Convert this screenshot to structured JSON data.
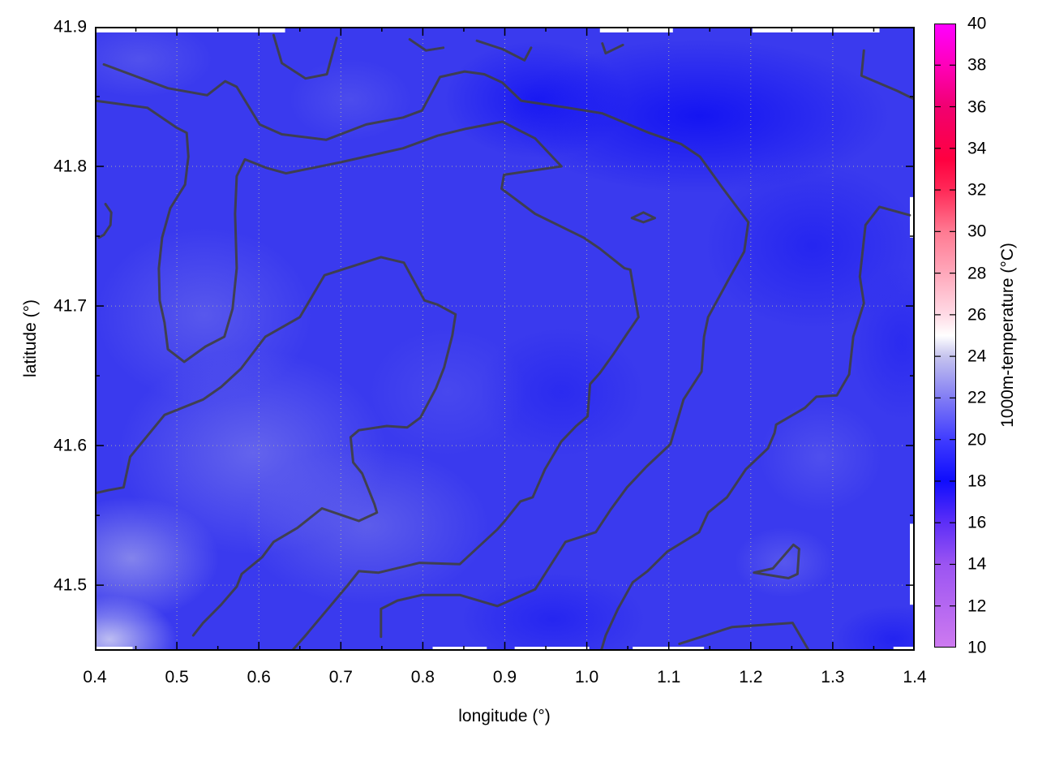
{
  "figure": {
    "kind": "gnuplot pm3d map with contour lines",
    "background": "#ffffff"
  },
  "axes": {
    "x": {
      "label": "longitude (°)",
      "range": [
        0.4,
        1.4
      ],
      "tick_labels": [
        "0.4",
        "0.5",
        "0.6",
        "0.7",
        "0.8",
        "0.9",
        "1.0",
        "1.1",
        "1.2",
        "1.3",
        "1.4"
      ],
      "tick_values": [
        0.4,
        0.5,
        0.6,
        0.7,
        0.8,
        0.9,
        1.0,
        1.1,
        1.2,
        1.3,
        1.4
      ],
      "minor_tick_values": [
        0.45,
        0.55,
        0.65,
        0.75,
        0.85,
        0.95,
        1.05,
        1.15,
        1.25,
        1.35
      ]
    },
    "y": {
      "label": "latitude (°)",
      "range": [
        41.453,
        41.9
      ],
      "tick_labels": [
        "41.5",
        "41.6",
        "41.7",
        "41.8",
        "41.9"
      ],
      "tick_values": [
        41.5,
        41.6,
        41.7,
        41.8,
        41.9
      ],
      "minor_tick_values": [
        41.55,
        41.65,
        41.75,
        41.85
      ]
    }
  },
  "colorbar": {
    "label": "1000m-temperature (°C)",
    "range": [
      10,
      40
    ],
    "tick_values": [
      10,
      12,
      14,
      16,
      18,
      20,
      22,
      24,
      26,
      28,
      30,
      32,
      34,
      36,
      38,
      40
    ],
    "palette": [
      {
        "v": 10,
        "c": "#cd7af0"
      },
      {
        "v": 14,
        "c": "#9b54f2"
      },
      {
        "v": 16,
        "c": "#5c2ef7"
      },
      {
        "v": 18,
        "c": "#0f0dfd"
      },
      {
        "v": 20,
        "c": "#403cff"
      },
      {
        "v": 22,
        "c": "#827df4"
      },
      {
        "v": 24,
        "c": "#c6c4ee"
      },
      {
        "v": 25,
        "c": "#ffffff"
      },
      {
        "v": 26,
        "c": "#ffdbe6"
      },
      {
        "v": 28,
        "c": "#ffa8bb"
      },
      {
        "v": 30,
        "c": "#ff7a92"
      },
      {
        "v": 32,
        "c": "#ff2a58"
      },
      {
        "v": 33.5,
        "c": "#ff0040"
      },
      {
        "v": 36,
        "c": "#f10070"
      },
      {
        "v": 38,
        "c": "#ff00b8"
      },
      {
        "v": 40,
        "c": "#ff00ff"
      }
    ]
  },
  "chart_data": {
    "type": "heatmap",
    "x_range": [
      0.4,
      1.4
    ],
    "y_range": [
      41.453,
      41.9
    ],
    "value_range": [
      10,
      40
    ],
    "grid": true,
    "field_summary": "Temperature field at 1000 m over a lon/lat box; whole domain is blue (~17-21 °C): warmer lighter blue-lavender in the south-west corner and centre-left, deepest blue (~17-18 °C) along the northern band, centre-east and south-east; thin white slivers (no data) along parts of the top, right and bottom edges.",
    "contour_color": "#3f3f3f",
    "contour_lines": [
      {
        "points": [
          [
            0.411,
            41.873
          ],
          [
            0.489,
            41.856
          ],
          [
            0.537,
            41.851
          ],
          [
            0.559,
            41.861
          ],
          [
            0.573,
            41.857
          ],
          [
            0.601,
            41.83
          ],
          [
            0.628,
            41.823
          ],
          [
            0.682,
            41.819
          ],
          [
            0.731,
            41.83
          ],
          [
            0.776,
            41.835
          ],
          [
            0.799,
            41.84
          ],
          [
            0.821,
            41.864
          ],
          [
            0.851,
            41.868
          ],
          [
            0.875,
            41.866
          ],
          [
            0.897,
            41.86
          ],
          [
            0.92,
            41.847
          ],
          [
            0.977,
            41.842
          ],
          [
            1.019,
            41.838
          ],
          [
            1.076,
            41.824
          ],
          [
            1.115,
            41.816
          ],
          [
            1.138,
            41.807
          ],
          [
            1.165,
            41.785
          ],
          [
            1.197,
            41.76
          ],
          [
            1.192,
            41.739
          ],
          [
            1.173,
            41.719
          ],
          [
            1.148,
            41.692
          ],
          [
            1.143,
            41.678
          ],
          [
            1.14,
            41.653
          ],
          [
            1.118,
            41.633
          ],
          [
            1.102,
            41.601
          ],
          [
            1.073,
            41.585
          ],
          [
            1.049,
            41.57
          ],
          [
            1.029,
            41.554
          ],
          [
            1.011,
            41.538
          ],
          [
            0.974,
            41.531
          ],
          [
            0.937,
            41.497
          ],
          [
            0.891,
            41.485
          ],
          [
            0.845,
            41.493
          ],
          [
            0.799,
            41.493
          ],
          [
            0.769,
            41.489
          ],
          [
            0.749,
            41.483
          ],
          [
            0.749,
            41.463
          ]
        ]
      },
      {
        "points": [
          [
            0.401,
            41.847
          ],
          [
            0.464,
            41.842
          ],
          [
            0.499,
            41.828
          ],
          [
            0.512,
            41.824
          ],
          [
            0.514,
            41.807
          ],
          [
            0.51,
            41.787
          ],
          [
            0.492,
            41.77
          ],
          [
            0.482,
            41.749
          ],
          [
            0.478,
            41.727
          ],
          [
            0.479,
            41.704
          ],
          [
            0.485,
            41.688
          ],
          [
            0.489,
            41.669
          ],
          [
            0.509,
            41.66
          ],
          [
            0.535,
            41.671
          ],
          [
            0.558,
            41.678
          ],
          [
            0.568,
            41.698
          ],
          [
            0.573,
            41.727
          ],
          [
            0.571,
            41.766
          ],
          [
            0.573,
            41.793
          ],
          [
            0.583,
            41.805
          ],
          [
            0.609,
            41.799
          ],
          [
            0.633,
            41.795
          ],
          [
            0.7,
            41.803
          ],
          [
            0.776,
            41.813
          ],
          [
            0.818,
            41.822
          ],
          [
            0.853,
            41.827
          ],
          [
            0.897,
            41.832
          ],
          [
            0.937,
            41.82
          ],
          [
            0.969,
            41.8
          ],
          [
            0.899,
            41.794
          ],
          [
            0.896,
            41.784
          ],
          [
            0.937,
            41.766
          ],
          [
            0.996,
            41.749
          ],
          [
            1.016,
            41.741
          ],
          [
            1.046,
            41.727
          ],
          [
            1.053,
            41.726
          ],
          [
            1.063,
            41.692
          ],
          [
            1.049,
            41.68
          ],
          [
            1.033,
            41.666
          ],
          [
            1.016,
            41.652
          ],
          [
            1.004,
            41.644
          ],
          [
            1.001,
            41.621
          ],
          [
            0.987,
            41.614
          ],
          [
            0.969,
            41.603
          ],
          [
            0.949,
            41.583
          ],
          [
            0.934,
            41.563
          ],
          [
            0.919,
            41.56
          ],
          [
            0.9,
            41.546
          ],
          [
            0.891,
            41.54
          ],
          [
            0.845,
            41.515
          ],
          [
            0.796,
            41.516
          ],
          [
            0.746,
            41.509
          ],
          [
            0.722,
            41.51
          ],
          [
            0.707,
            41.499
          ],
          [
            0.657,
            41.464
          ],
          [
            0.642,
            41.454
          ]
        ]
      },
      {
        "points": [
          [
            0.401,
            41.566
          ],
          [
            0.416,
            41.568
          ],
          [
            0.435,
            41.57
          ],
          [
            0.443,
            41.592
          ],
          [
            0.485,
            41.622
          ],
          [
            0.532,
            41.633
          ],
          [
            0.554,
            41.642
          ],
          [
            0.578,
            41.655
          ],
          [
            0.608,
            41.678
          ],
          [
            0.65,
            41.692
          ],
          [
            0.68,
            41.722
          ],
          [
            0.749,
            41.735
          ],
          [
            0.777,
            41.731
          ],
          [
            0.802,
            41.704
          ],
          [
            0.818,
            41.701
          ],
          [
            0.84,
            41.694
          ],
          [
            0.836,
            41.679
          ],
          [
            0.826,
            41.656
          ],
          [
            0.816,
            41.641
          ],
          [
            0.797,
            41.62
          ],
          [
            0.781,
            41.613
          ],
          [
            0.756,
            41.614
          ],
          [
            0.722,
            41.611
          ],
          [
            0.712,
            41.606
          ],
          [
            0.715,
            41.588
          ],
          [
            0.726,
            41.58
          ],
          [
            0.741,
            41.558
          ],
          [
            0.744,
            41.552
          ],
          [
            0.722,
            41.546
          ],
          [
            0.677,
            41.555
          ],
          [
            0.647,
            41.541
          ],
          [
            0.618,
            41.531
          ],
          [
            0.604,
            41.52
          ],
          [
            0.579,
            41.508
          ],
          [
            0.573,
            41.499
          ],
          [
            0.554,
            41.486
          ],
          [
            0.532,
            41.473
          ],
          [
            0.52,
            41.464
          ]
        ]
      },
      {
        "points": [
          [
            1.394,
            41.765
          ],
          [
            1.357,
            41.771
          ],
          [
            1.34,
            41.758
          ],
          [
            1.333,
            41.721
          ],
          [
            1.338,
            41.702
          ],
          [
            1.325,
            41.678
          ],
          [
            1.32,
            41.651
          ],
          [
            1.305,
            41.636
          ],
          [
            1.28,
            41.635
          ],
          [
            1.266,
            41.627
          ],
          [
            1.231,
            41.615
          ],
          [
            1.229,
            41.609
          ],
          [
            1.221,
            41.598
          ],
          [
            1.194,
            41.583
          ],
          [
            1.171,
            41.563
          ],
          [
            1.148,
            41.552
          ],
          [
            1.137,
            41.538
          ],
          [
            1.098,
            41.524
          ],
          [
            1.074,
            41.51
          ],
          [
            1.056,
            41.502
          ],
          [
            1.038,
            41.483
          ],
          [
            1.023,
            41.464
          ],
          [
            1.018,
            41.454
          ]
        ]
      },
      {
        "points": [
          [
            0.618,
            41.894
          ],
          [
            0.628,
            41.874
          ],
          [
            0.657,
            41.863
          ],
          [
            0.683,
            41.866
          ],
          [
            0.695,
            41.892
          ]
        ]
      },
      {
        "points": [
          [
            0.784,
            41.891
          ],
          [
            0.804,
            41.883
          ],
          [
            0.825,
            41.885
          ]
        ]
      },
      {
        "points": [
          [
            0.866,
            41.89
          ],
          [
            0.897,
            41.884
          ],
          [
            0.924,
            41.876
          ],
          [
            0.932,
            41.885
          ]
        ]
      },
      {
        "points": [
          [
            1.019,
            41.888
          ],
          [
            1.023,
            41.881
          ],
          [
            1.044,
            41.887
          ]
        ]
      },
      {
        "points": [
          [
            1.338,
            41.883
          ],
          [
            1.335,
            41.865
          ],
          [
            1.379,
            41.854
          ],
          [
            1.4,
            41.848
          ]
        ]
      },
      {
        "points": [
          [
            1.055,
            41.763
          ],
          [
            1.069,
            41.767
          ],
          [
            1.083,
            41.763
          ],
          [
            1.069,
            41.76
          ],
          [
            1.055,
            41.763
          ]
        ]
      },
      {
        "points": [
          [
            0.413,
            41.773
          ],
          [
            0.42,
            41.767
          ],
          [
            0.419,
            41.758
          ],
          [
            0.411,
            41.751
          ],
          [
            0.405,
            41.749
          ]
        ]
      },
      {
        "points": [
          [
            1.204,
            41.509
          ],
          [
            1.227,
            41.512
          ],
          [
            1.252,
            41.529
          ],
          [
            1.259,
            41.526
          ],
          [
            1.257,
            41.508
          ],
          [
            1.246,
            41.505
          ],
          [
            1.204,
            41.509
          ]
        ]
      },
      {
        "points": [
          [
            1.113,
            41.458
          ],
          [
            1.177,
            41.47
          ],
          [
            1.251,
            41.473
          ],
          [
            1.27,
            41.454
          ]
        ]
      }
    ],
    "no_data_gaps": {
      "top_lon": [
        [
          0.4,
          0.632
        ],
        [
          1.016,
          1.105
        ],
        [
          1.202,
          1.357
        ]
      ],
      "bottom_lon": [
        [
          0.4,
          0.446
        ],
        [
          0.812,
          0.878
        ],
        [
          0.912,
          1.003
        ],
        [
          1.056,
          1.143
        ],
        [
          1.374,
          1.4
        ]
      ],
      "right_lat": [
        [
          41.749,
          41.778
        ],
        [
          41.486,
          41.544
        ]
      ]
    }
  }
}
